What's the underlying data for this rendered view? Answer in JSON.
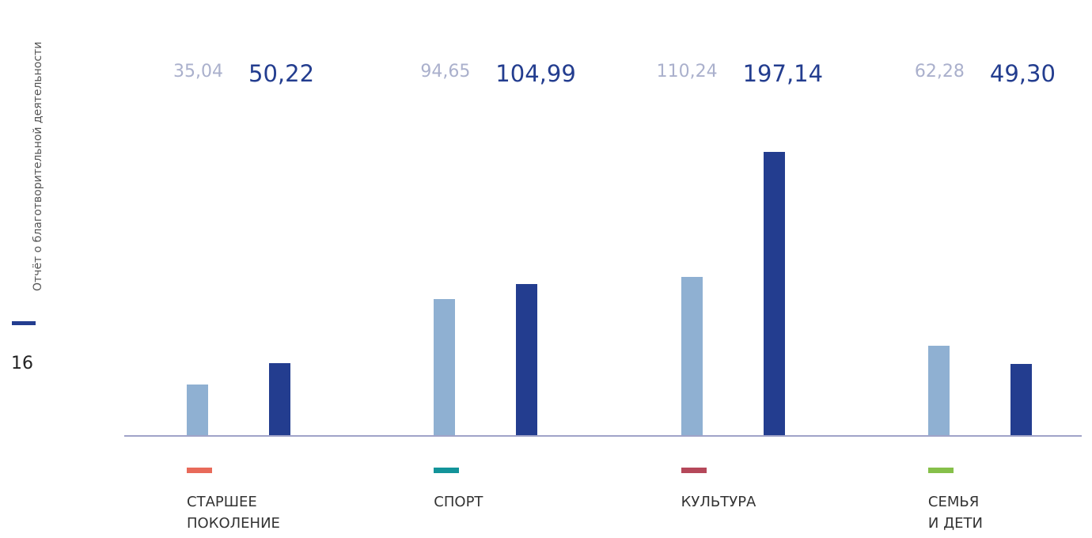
{
  "side_title": "Отчёт о благотворительной деятельности",
  "page_number": "16",
  "chart_data": {
    "type": "bar",
    "categories": [
      "СТАРШЕЕ\nПОКОЛЕНИЕ",
      "СПОРТ",
      "КУЛЬТУРА",
      "СЕМЬЯ\nИ ДЕТИ"
    ],
    "category_colors": [
      "#e86a5a",
      "#13949a",
      "#b5485a",
      "#86c04a"
    ],
    "series": [
      {
        "color": "#8fb0d2",
        "values": [
          35.04,
          94.65,
          110.24,
          62.28
        ],
        "value_labels": [
          "35,04",
          "94,65",
          "110,24",
          "62,28"
        ]
      },
      {
        "color": "#233d8f",
        "values": [
          50.22,
          104.99,
          197.14,
          49.3
        ],
        "value_labels": [
          "50,22",
          "104,99",
          "197,14",
          "49,30"
        ]
      }
    ]
  }
}
